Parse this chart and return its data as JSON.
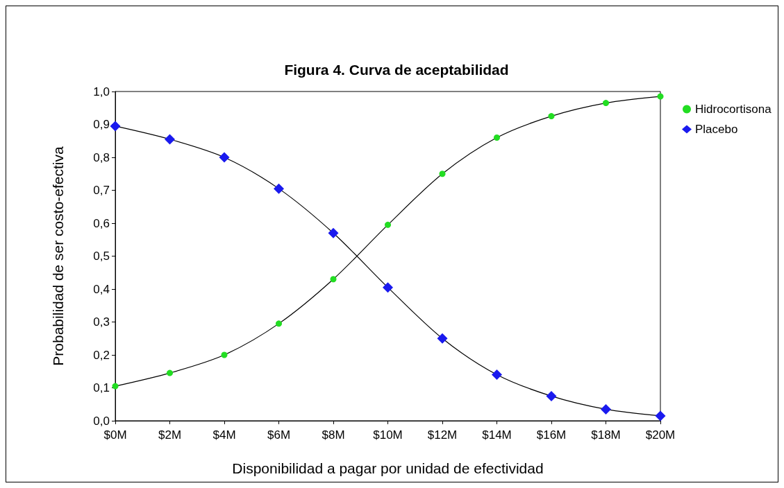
{
  "chart_data": {
    "type": "line",
    "title": "Figura 4. Curva de aceptabilidad",
    "xlabel": "Disponibilidad a pagar por unidad de efectividad",
    "ylabel": "Probabilidad de ser costo-efectiva",
    "x": [
      0,
      2,
      4,
      6,
      8,
      10,
      12,
      14,
      16,
      18,
      20
    ],
    "series": [
      {
        "name": "Hidrocortisona",
        "color": "#22dd22",
        "marker": "circle",
        "values": [
          0.105,
          0.145,
          0.2,
          0.295,
          0.43,
          0.595,
          0.75,
          0.86,
          0.925,
          0.965,
          0.985
        ]
      },
      {
        "name": "Placebo",
        "color": "#1a1aee",
        "marker": "diamond",
        "values": [
          0.895,
          0.855,
          0.8,
          0.705,
          0.57,
          0.405,
          0.25,
          0.14,
          0.075,
          0.035,
          0.015
        ]
      }
    ],
    "xlim": [
      0,
      20
    ],
    "xticks": [
      {
        "value": 0,
        "label": "$0M"
      },
      {
        "value": 2,
        "label": "$2M"
      },
      {
        "value": 4,
        "label": "$4M"
      },
      {
        "value": 6,
        "label": "$6M"
      },
      {
        "value": 8,
        "label": "$8M"
      },
      {
        "value": 10,
        "label": "$10M"
      },
      {
        "value": 12,
        "label": "$12M"
      },
      {
        "value": 14,
        "label": "$14M"
      },
      {
        "value": 16,
        "label": "$16M"
      },
      {
        "value": 18,
        "label": "$18M"
      },
      {
        "value": 20,
        "label": "$20M"
      }
    ],
    "ylim": [
      0,
      1
    ],
    "yticks": [
      {
        "value": 0,
        "label": "0,0"
      },
      {
        "value": 0.1,
        "label": "0,1"
      },
      {
        "value": 0.2,
        "label": "0,2"
      },
      {
        "value": 0.3,
        "label": "0,3"
      },
      {
        "value": 0.4,
        "label": "0,4"
      },
      {
        "value": 0.5,
        "label": "0,5"
      },
      {
        "value": 0.6,
        "label": "0,6"
      },
      {
        "value": 0.7,
        "label": "0,7"
      },
      {
        "value": 0.8,
        "label": "0,8"
      },
      {
        "value": 0.9,
        "label": "0,9"
      },
      {
        "value": 1,
        "label": "1,0"
      }
    ],
    "grid": false,
    "legend": "right",
    "line_style": "solid"
  }
}
